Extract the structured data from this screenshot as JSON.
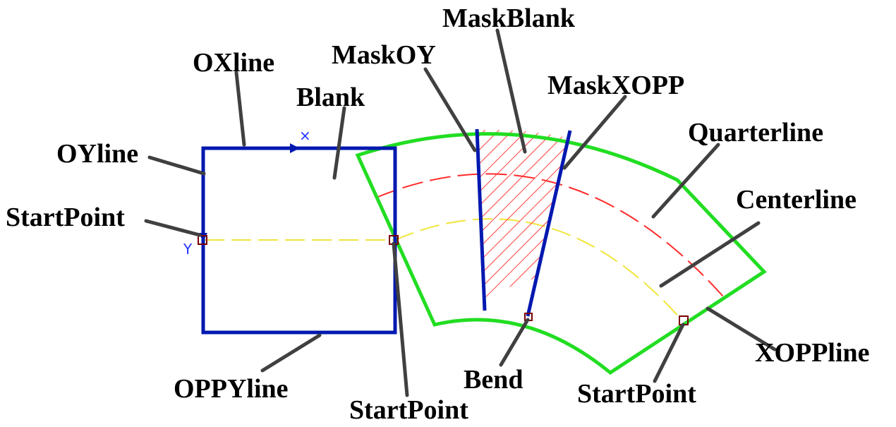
{
  "labels": {
    "oxline": "OXline",
    "oyline": "OYline",
    "startpoint_left": "StartPoint",
    "blank": "Blank",
    "maskoy": "MaskOY",
    "maskblank": "MaskBlank",
    "maskxopp": "MaskXOPP",
    "quarterline": "Quarterline",
    "centerline": "Centerline",
    "xoppline": "XOPPline",
    "oppyline": "OPPYline",
    "startpoint_mid": "StartPoint",
    "bend": "Bend",
    "startpoint_right": "StartPoint"
  },
  "axis_markers": {
    "x": "×",
    "y": "Y"
  },
  "colors": {
    "square": "#0018b0",
    "sector": "#22dd22",
    "quarterline": "#ff2a2a",
    "centerline": "#f0e63c",
    "hatch": "#ff4040",
    "marker": "#7a0000",
    "leader": "#404040"
  }
}
